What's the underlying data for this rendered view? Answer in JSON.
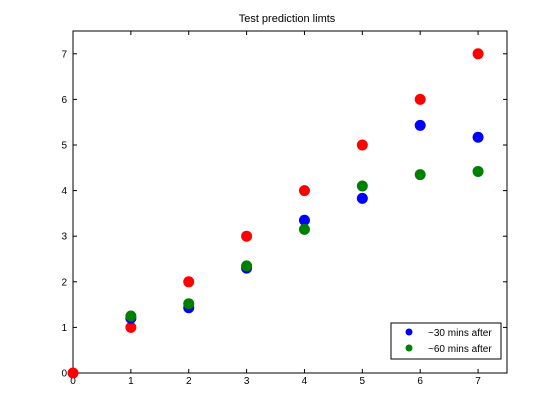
{
  "chart_data": {
    "type": "scatter",
    "title": "Test prediction limts",
    "xlabel": "",
    "ylabel": "",
    "xlim": [
      0,
      7.5
    ],
    "ylim": [
      0,
      7.5
    ],
    "xticks": [
      0,
      1,
      2,
      3,
      4,
      5,
      6,
      7
    ],
    "yticks": [
      0,
      1,
      2,
      3,
      4,
      5,
      6,
      7
    ],
    "grid": false,
    "legend_position": "bottom-right",
    "series": [
      {
        "color": "#ff0000",
        "points": [
          [
            0,
            0
          ],
          [
            1,
            1
          ],
          [
            2,
            2
          ],
          [
            3,
            3
          ],
          [
            4,
            4
          ],
          [
            5,
            5
          ],
          [
            6,
            6
          ],
          [
            7,
            7
          ]
        ]
      },
      {
        "name": "~30 mins after",
        "color": "#0000ff",
        "points": [
          [
            1,
            1.2
          ],
          [
            2,
            1.43
          ],
          [
            3,
            2.3
          ],
          [
            4,
            3.35
          ],
          [
            5,
            3.83
          ],
          [
            6,
            5.43
          ],
          [
            7,
            5.17
          ]
        ]
      },
      {
        "name": "~60 mins after",
        "color": "#008000",
        "points": [
          [
            1,
            1.25
          ],
          [
            2,
            1.52
          ],
          [
            3,
            2.35
          ],
          [
            4,
            3.15
          ],
          [
            5,
            4.1
          ],
          [
            6,
            4.35
          ],
          [
            7,
            4.42
          ]
        ]
      }
    ]
  }
}
